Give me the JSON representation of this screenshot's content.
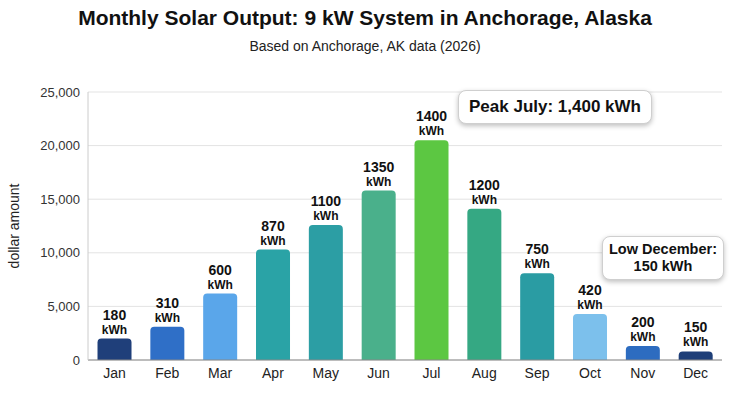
{
  "chart_data": {
    "type": "bar",
    "title": "Monthly Solar Output: 9 kW System in Anchorage, Alaska",
    "subtitle": "Based on Anchorage, AK data (2026)",
    "y_label": "dollar amount",
    "categories": [
      "Jan",
      "Feb",
      "Mar",
      "Apr",
      "May",
      "Jun",
      "Jul",
      "Aug",
      "Sep",
      "Oct",
      "Nov",
      "Dec"
    ],
    "values": [
      2000,
      3100,
      6200,
      10300,
      12600,
      15800,
      20500,
      14100,
      8100,
      4300,
      1300,
      800
    ],
    "bar_labels": [
      "180 kWh",
      "310 kWh",
      "600 kWh",
      "870 kWh",
      "1100 kWh",
      "1350 kWh",
      "1400 kWh",
      "1200 kWh",
      "750 kWh",
      "420 kWh",
      "200 kWh",
      "150 kWh"
    ],
    "colors": [
      "#1f3f7a",
      "#2f6fc7",
      "#5aa6ea",
      "#2aa3a6",
      "#2c9ea4",
      "#4ab08b",
      "#5cc742",
      "#35a883",
      "#2a9ca3",
      "#7cc0ec",
      "#2d6cc0",
      "#1e3e78"
    ],
    "ylim": [
      0,
      25000
    ],
    "yticks": [
      0,
      {
        "value": 5000,
        "label": "5,000"
      },
      {
        "value": 10000,
        "label": "10,000"
      },
      {
        "value": 15000,
        "label": "15,000"
      },
      {
        "value": 20000,
        "label": "20,000"
      },
      {
        "value": 25000,
        "label": "25,000"
      }
    ],
    "grid": true,
    "callouts": [
      {
        "category": "Jul",
        "text": "Peak July: 1,400 kWh"
      },
      {
        "category": "Dec",
        "text": "Low December: 150 kWh"
      }
    ]
  }
}
